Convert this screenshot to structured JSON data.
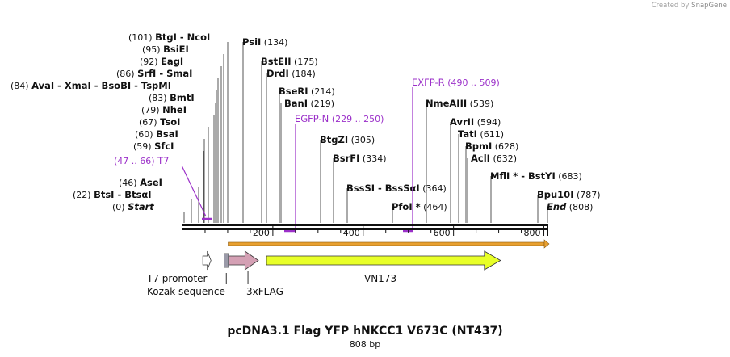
{
  "credit": {
    "prefix": "Created by",
    "brand": "SnapGene"
  },
  "title": "pcDNA3.1 Flag YFP hNKCC1 V673C (NT437)",
  "length_label": "808 bp",
  "sites": [
    {
      "pre": "(101)",
      "name": "BtgI  - NcoI",
      "post": ""
    },
    {
      "pre": "(95)",
      "name": "BsiEI",
      "post": ""
    },
    {
      "pre": "(92)",
      "name": "EagI",
      "post": ""
    },
    {
      "pre": "(86)",
      "name": "SrfI  - SmaI",
      "post": ""
    },
    {
      "pre": "(84)",
      "name": "AvaI  - XmaI  - BsoBI  - TspMI",
      "post": ""
    },
    {
      "pre": "(83)",
      "name": "BmtI",
      "post": ""
    },
    {
      "pre": "(79)",
      "name": "NheI",
      "post": ""
    },
    {
      "pre": "(67)",
      "name": "TsoI",
      "post": ""
    },
    {
      "pre": "(60)",
      "name": "BsaI",
      "post": ""
    },
    {
      "pre": "(59)",
      "name": "SfcI",
      "post": ""
    },
    {
      "pre": "(46)",
      "name": "AseI",
      "post": ""
    },
    {
      "pre": "(22)",
      "name": "BtsI  - BtsαI",
      "post": ""
    },
    {
      "pre": "(0)",
      "name": "Start",
      "post": "",
      "italic": true
    },
    {
      "pre": "",
      "name": "PsiI",
      "post": "(134)"
    },
    {
      "pre": "",
      "name": "BstEII",
      "post": "(175)"
    },
    {
      "pre": "",
      "name": "DrdI",
      "post": "(184)"
    },
    {
      "pre": "",
      "name": "BseRI",
      "post": "(214)"
    },
    {
      "pre": "",
      "name": "BanI",
      "post": "(219)"
    },
    {
      "pre": "",
      "name": "BtgZI",
      "post": "(305)"
    },
    {
      "pre": "",
      "name": "BsrFI",
      "post": "(334)"
    },
    {
      "pre": "",
      "name": "BssSI  - BssSαI",
      "post": "(364)"
    },
    {
      "pre": "",
      "name": "PfoI *",
      "post": "(464)"
    },
    {
      "pre": "",
      "name": "NmeAIII",
      "post": "(539)"
    },
    {
      "pre": "",
      "name": "AvrII",
      "post": "(594)"
    },
    {
      "pre": "",
      "name": "TatI",
      "post": "(611)"
    },
    {
      "pre": "",
      "name": "BpmI",
      "post": "(628)"
    },
    {
      "pre": "",
      "name": "AclI",
      "post": "(632)"
    },
    {
      "pre": "",
      "name": "MflI * - BstYI",
      "post": "(683)"
    },
    {
      "pre": "",
      "name": "Bpu10I",
      "post": "(787)"
    },
    {
      "pre": "",
      "name": "End",
      "post": "(808)",
      "italic": true
    }
  ],
  "primers": [
    {
      "name": "T7",
      "range": "(47 .. 66)"
    },
    {
      "name": "EGFP-N",
      "range": "(229 .. 250)"
    },
    {
      "name": "EXFP-R",
      "range": "(490 .. 509)"
    }
  ],
  "ruler": {
    "length": 808,
    "ticks": [
      200,
      400,
      600,
      800
    ]
  },
  "features": [
    {
      "name": "T7 promoter",
      "start": 45,
      "end": 63
    },
    {
      "name": "Kozak sequence",
      "start": 92,
      "end": 102
    },
    {
      "name": "3xFLAG",
      "start": 102,
      "end": 168
    },
    {
      "name": "VN173",
      "start": 186,
      "end": 704
    }
  ],
  "orf": {
    "start": 101,
    "end": 808
  },
  "colors": {
    "primer": "#9b30c9",
    "orf": "#e8a030",
    "t7_promoter": "#ffffff",
    "kozak": "#9a9aa8",
    "flag": "#d4a0b4",
    "vn173": "#e8ff28"
  }
}
